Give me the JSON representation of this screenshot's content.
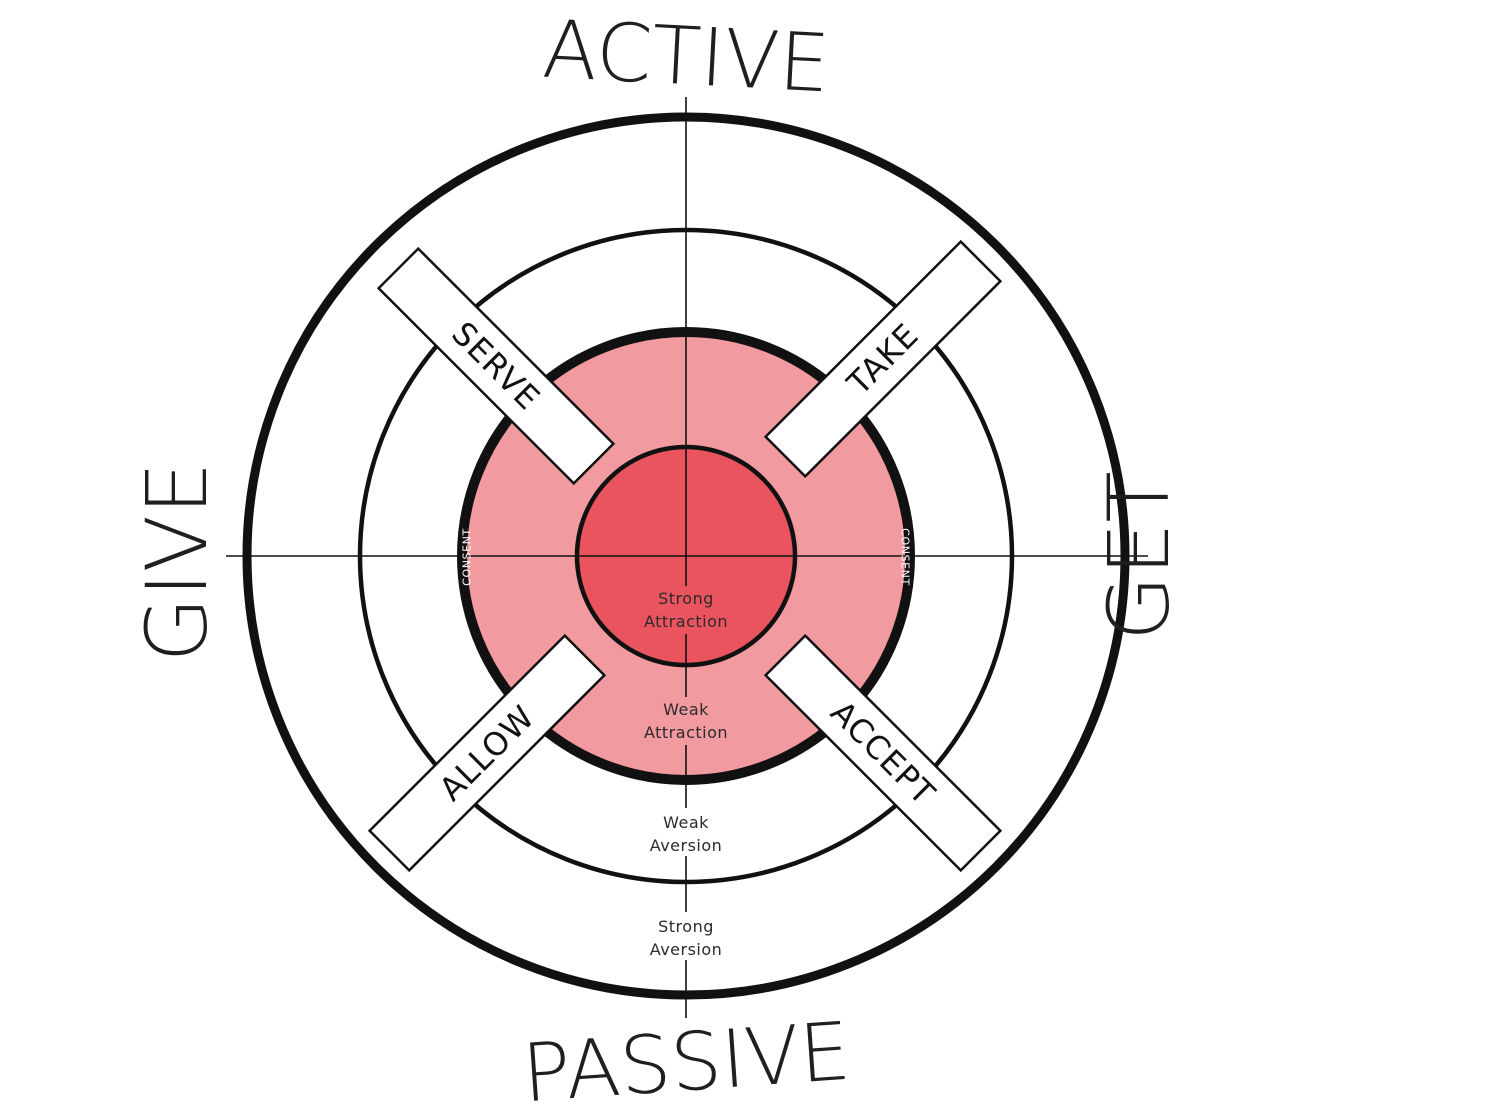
{
  "axes": {
    "top": "ACTIVE",
    "bottom": "PASSIVE",
    "left": "GIVE",
    "right": "GET"
  },
  "zones": {
    "strong_attraction": [
      "Strong",
      "Attraction"
    ],
    "weak_attraction": [
      "Weak",
      "Attraction"
    ],
    "weak_aversion": [
      "Weak",
      "Aversion"
    ],
    "strong_aversion": [
      "Strong",
      "Aversion"
    ]
  },
  "consent": {
    "left": "CONSENT",
    "right": "CONSENT"
  },
  "roles": {
    "serve": "SERVE",
    "take": "TAKE",
    "allow": "ALLOW",
    "accept": "ACCEPT"
  },
  "colors": {
    "inner_circle": "#e9545f",
    "middle_circle": "#f19aa0",
    "rings": "#111111",
    "background": "#ffffff"
  }
}
